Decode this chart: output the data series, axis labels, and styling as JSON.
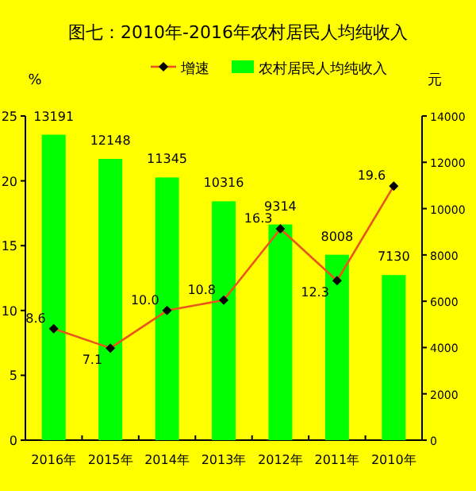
{
  "chart_data": {
    "type": "bar",
    "title": "图七：2010年-2016年农村居民人均纯收入",
    "categories": [
      "2016年",
      "2015年",
      "2014年",
      "2013年",
      "2012年",
      "2011年",
      "2010年"
    ],
    "series": [
      {
        "name": "增速",
        "type": "line",
        "color": "#e8561c",
        "axis": "y",
        "marker": "diamond",
        "values": [
          8.6,
          7.1,
          10.0,
          10.8,
          16.3,
          12.3,
          19.6
        ],
        "value_labels": [
          "8.6",
          "7.1",
          "10.0",
          "10.8",
          "16.3",
          "12.3",
          "19.6"
        ]
      },
      {
        "name": "农村居民人均纯收入",
        "color": "#00ff00",
        "axis": "y2",
        "values": [
          13191,
          12148,
          11345,
          10316,
          9314,
          8008,
          7130
        ]
      }
    ],
    "ylabel": "%",
    "y2label": "元",
    "ylim": [
      0,
      25
    ],
    "yticks": [
      0,
      5,
      10,
      15,
      20,
      25
    ],
    "y2lim": [
      0,
      14000
    ],
    "y2ticks": [
      0,
      2000,
      4000,
      6000,
      8000,
      10000,
      12000,
      14000
    ],
    "data_labels": true,
    "legend": "top",
    "grid": false
  }
}
